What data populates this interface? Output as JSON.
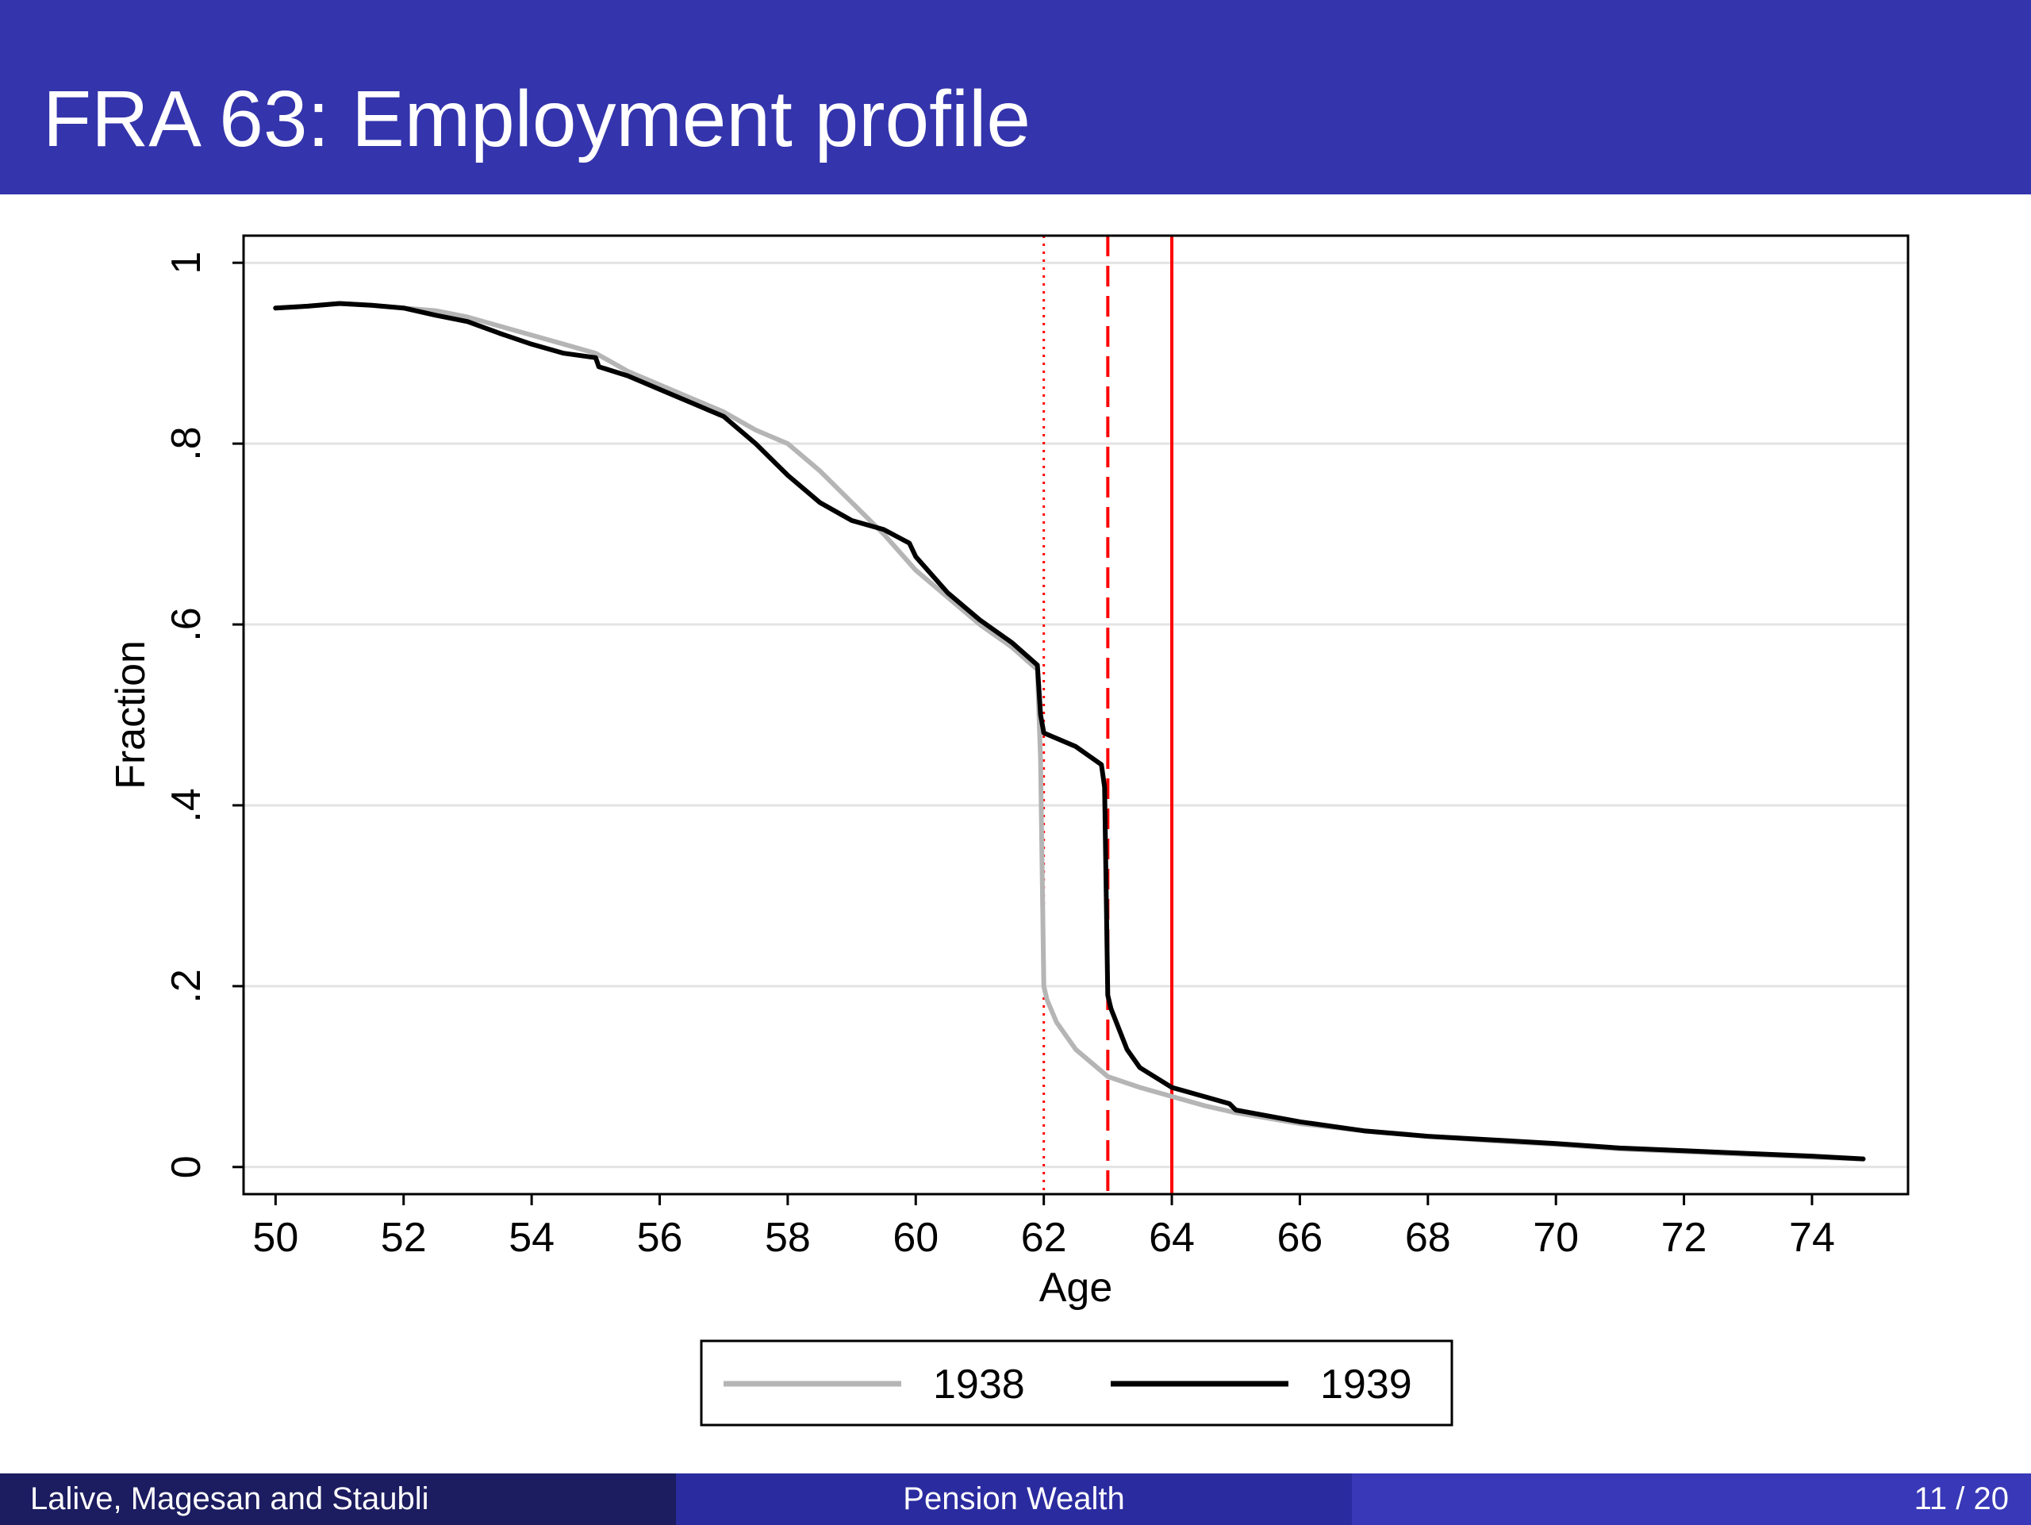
{
  "slide": {
    "title": "FRA 63: Employment profile"
  },
  "footer": {
    "authors": "Lalive, Magesan and Staubli",
    "topic": "Pension Wealth",
    "page": "11 / 20"
  },
  "colors": {
    "title_bar": "#3434ac",
    "series_1938": "#b5b5b5",
    "series_1939": "#000000",
    "ref_lines": "#ff0000"
  },
  "chart_data": {
    "type": "line",
    "xlabel": "Age",
    "ylabel": "Fraction",
    "xlim": [
      49.5,
      75.5
    ],
    "ylim": [
      -0.03,
      1.03
    ],
    "xticks": [
      50,
      52,
      54,
      56,
      58,
      60,
      62,
      64,
      66,
      68,
      70,
      72,
      74
    ],
    "xtick_labels": [
      "50",
      "52",
      "54",
      "56",
      "58",
      "60",
      "62",
      "64",
      "66",
      "68",
      "70",
      "72",
      "74"
    ],
    "yticks": [
      0,
      0.2,
      0.4,
      0.6,
      0.8,
      1
    ],
    "ytick_labels": [
      "0",
      ".2",
      ".4",
      ".6",
      ".8",
      "1"
    ],
    "grid": true,
    "legend_position": "bottom",
    "vlines": [
      {
        "x": 62,
        "style": "dotted"
      },
      {
        "x": 63,
        "style": "dashed"
      },
      {
        "x": 64,
        "style": "solid"
      }
    ],
    "series": [
      {
        "name": "1938",
        "x": [
          50,
          50.5,
          51,
          51.5,
          52,
          52.5,
          53,
          53.5,
          54,
          54.5,
          55,
          55.5,
          56,
          56.5,
          57,
          57.5,
          58,
          58.5,
          59,
          59.5,
          60,
          60.5,
          61,
          61.5,
          61.9,
          61.95,
          62,
          62.05,
          62.2,
          62.5,
          63,
          63.5,
          64,
          64.5,
          65,
          66,
          67,
          68,
          69,
          70,
          71,
          72,
          73,
          74,
          74.8
        ],
        "y": [
          0.95,
          0.952,
          0.955,
          0.953,
          0.95,
          0.947,
          0.94,
          0.93,
          0.92,
          0.91,
          0.9,
          0.88,
          0.865,
          0.85,
          0.835,
          0.815,
          0.8,
          0.77,
          0.735,
          0.7,
          0.66,
          0.63,
          0.6,
          0.575,
          0.55,
          0.45,
          0.2,
          0.185,
          0.16,
          0.13,
          0.1,
          0.088,
          0.078,
          0.068,
          0.06,
          0.048,
          0.04,
          0.034,
          0.029,
          0.025,
          0.02,
          0.017,
          0.014,
          0.011,
          0.009
        ]
      },
      {
        "name": "1939",
        "x": [
          50,
          50.5,
          51,
          51.5,
          52,
          52.5,
          53,
          53.5,
          54,
          54.5,
          55,
          55.05,
          55.5,
          56,
          56.5,
          57,
          57.5,
          58,
          58.5,
          59,
          59.5,
          59.9,
          60,
          60.5,
          61,
          61.5,
          61.9,
          61.95,
          62,
          62.5,
          62.9,
          62.95,
          63,
          63.05,
          63.3,
          63.5,
          64,
          64.5,
          64.9,
          65,
          66,
          67,
          68,
          69,
          70,
          71,
          72,
          73,
          74,
          74.8
        ],
        "y": [
          0.95,
          0.952,
          0.955,
          0.953,
          0.95,
          0.942,
          0.935,
          0.922,
          0.91,
          0.9,
          0.895,
          0.885,
          0.875,
          0.86,
          0.845,
          0.83,
          0.8,
          0.765,
          0.735,
          0.715,
          0.705,
          0.69,
          0.675,
          0.635,
          0.605,
          0.58,
          0.555,
          0.5,
          0.48,
          0.465,
          0.445,
          0.42,
          0.19,
          0.175,
          0.13,
          0.11,
          0.088,
          0.078,
          0.07,
          0.063,
          0.05,
          0.04,
          0.034,
          0.03,
          0.026,
          0.021,
          0.018,
          0.015,
          0.012,
          0.009
        ]
      }
    ]
  }
}
